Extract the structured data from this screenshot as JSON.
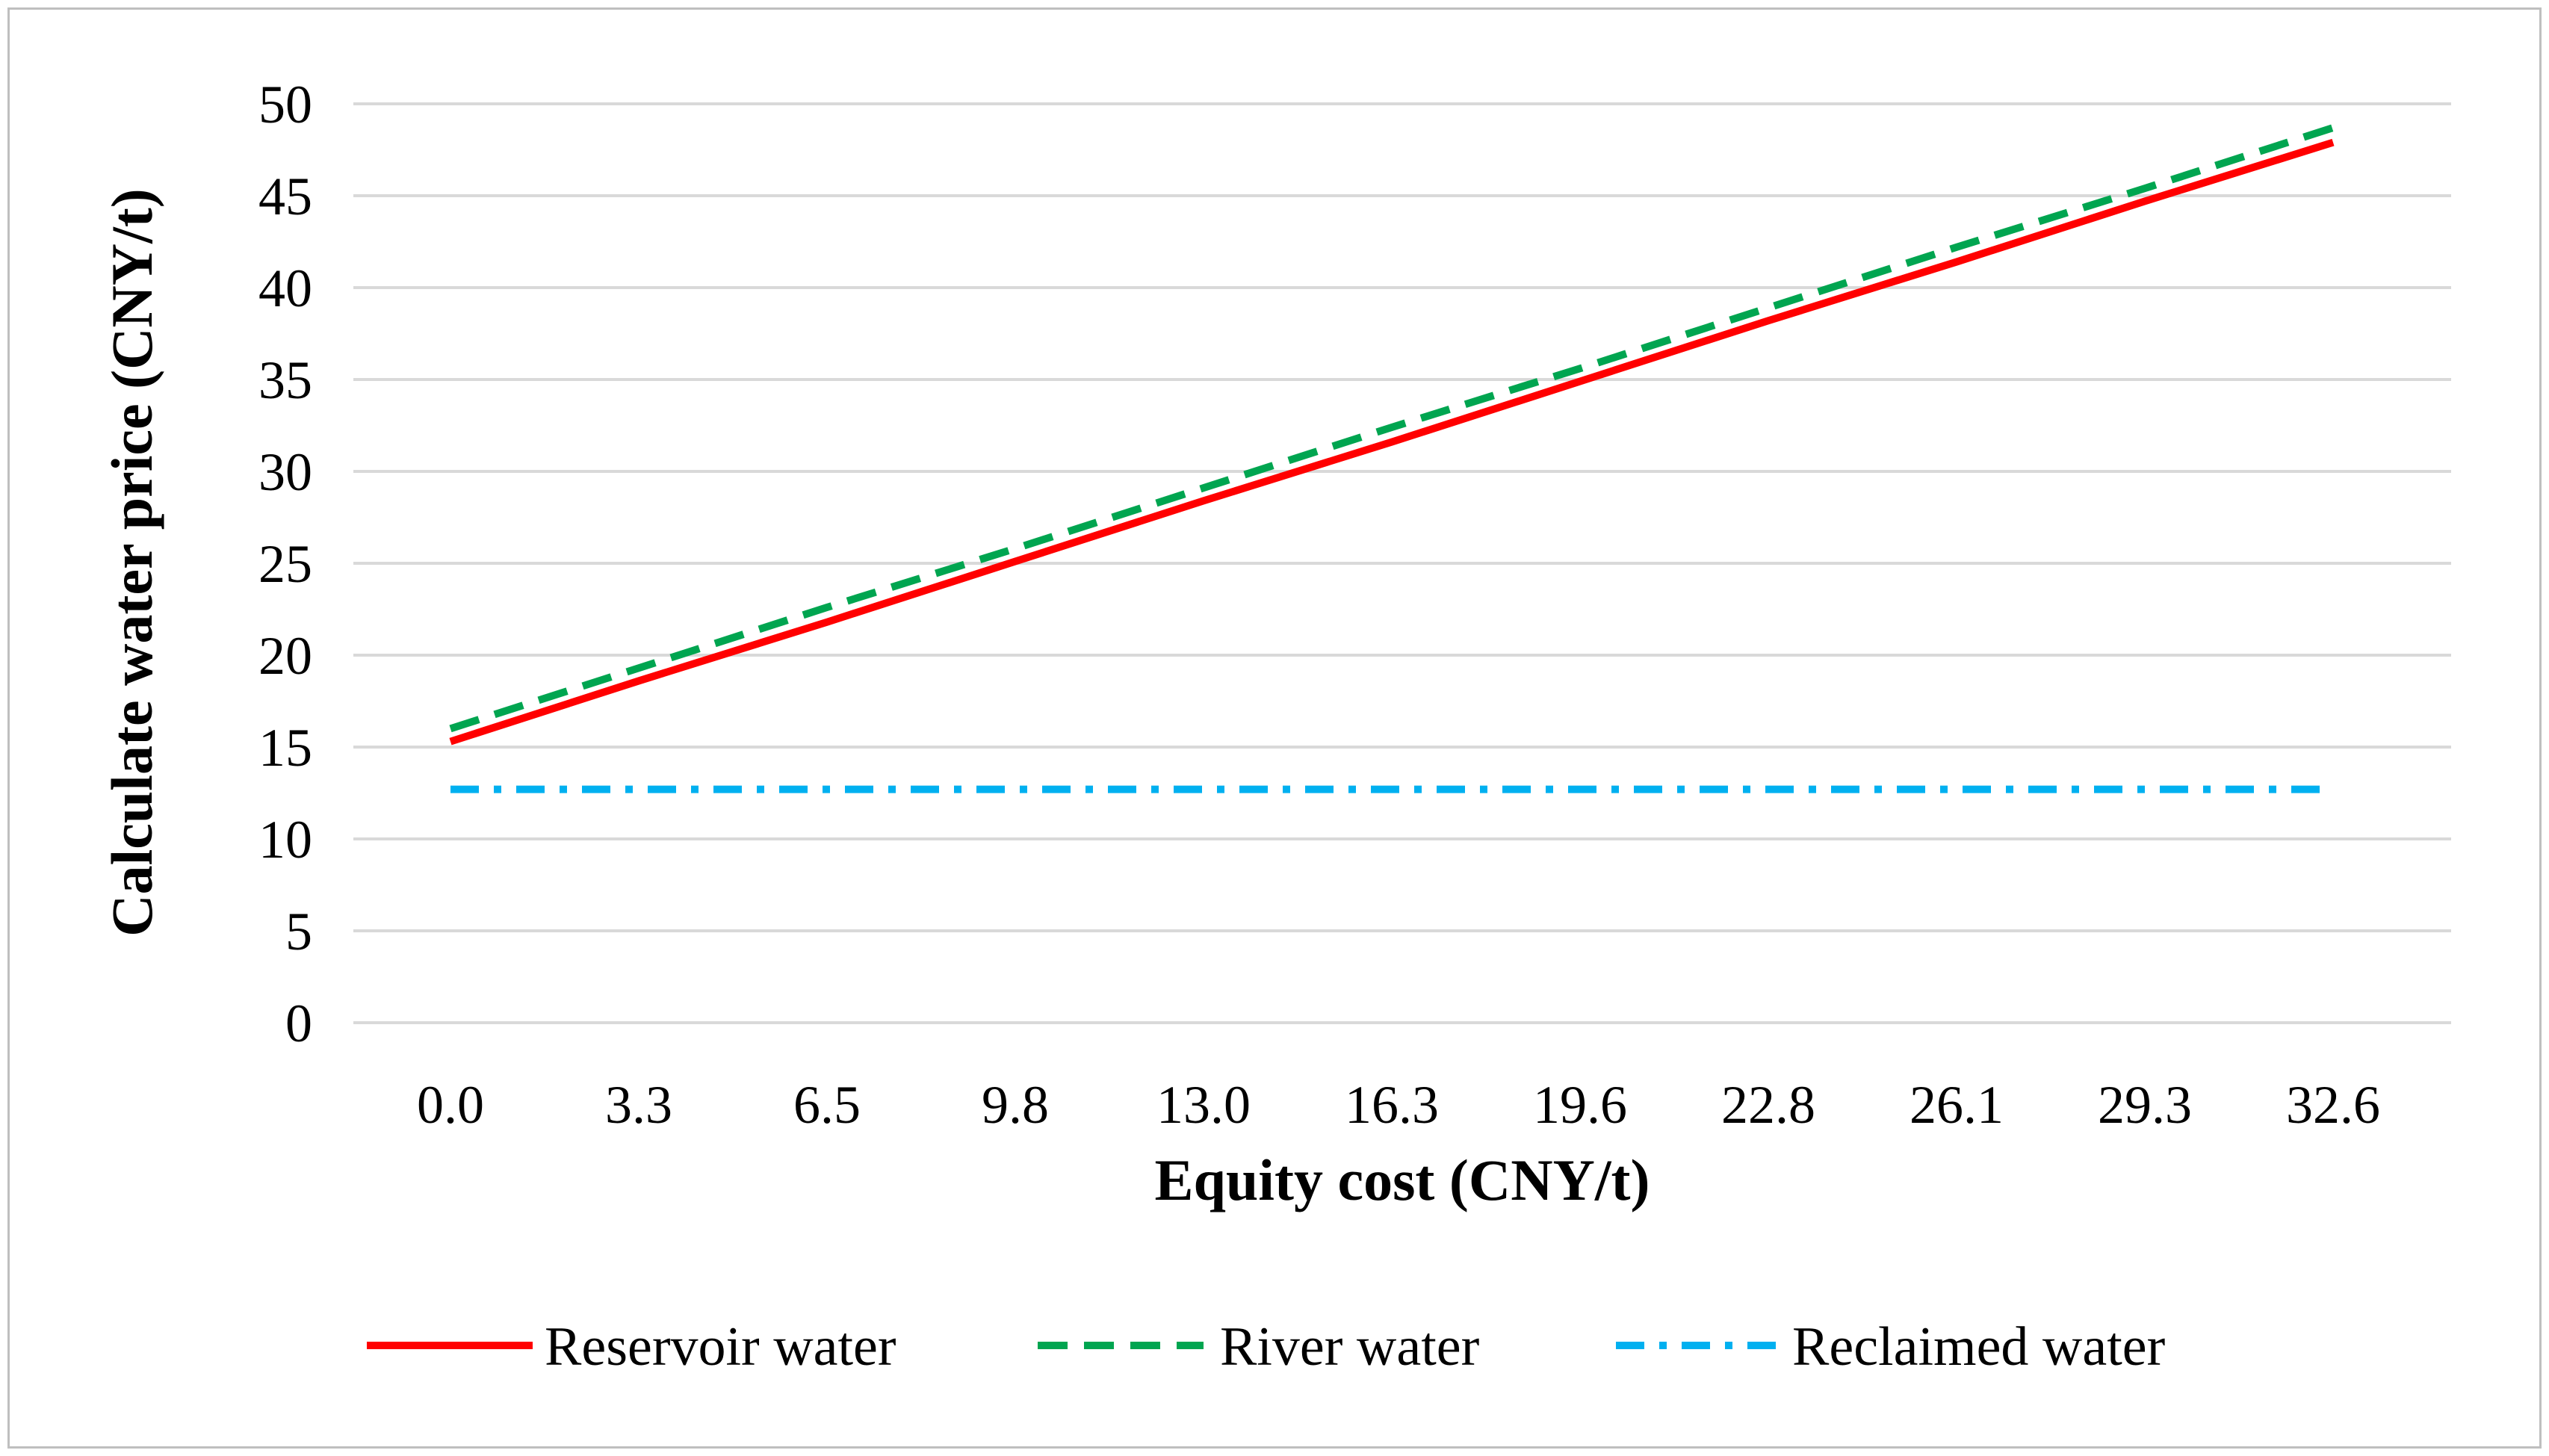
{
  "chart_data": {
    "type": "line",
    "title": "",
    "xlabel": "Equity cost (CNY/t)",
    "ylabel": "Calculate water price (CNY/t)",
    "categories": [
      "0.0",
      "3.3",
      "6.5",
      "9.8",
      "13.0",
      "16.3",
      "19.6",
      "22.8",
      "26.1",
      "29.3",
      "32.6"
    ],
    "ylim": [
      0,
      50
    ],
    "yticks": [
      "0",
      "5",
      "10",
      "15",
      "20",
      "25",
      "30",
      "35",
      "40",
      "45",
      "50"
    ],
    "grid": true,
    "legend_position": "bottom",
    "series": [
      {
        "name": "Reservoir water",
        "style": "solid",
        "color": "#ff0000",
        "values": [
          15.3,
          18.6,
          21.8,
          25.1,
          28.4,
          31.6,
          34.9,
          38.2,
          41.4,
          44.7,
          47.9
        ]
      },
      {
        "name": "River water",
        "style": "dashed",
        "color": "#00a550",
        "values": [
          16.0,
          19.3,
          22.6,
          25.8,
          29.1,
          32.4,
          35.6,
          38.9,
          42.2,
          45.4,
          48.7
        ]
      },
      {
        "name": "Reclaimed water",
        "style": "dash-dot",
        "color": "#00b0f0",
        "values": [
          12.7,
          12.7,
          12.7,
          12.7,
          12.7,
          12.7,
          12.7,
          12.7,
          12.7,
          12.7,
          12.7
        ]
      }
    ]
  }
}
